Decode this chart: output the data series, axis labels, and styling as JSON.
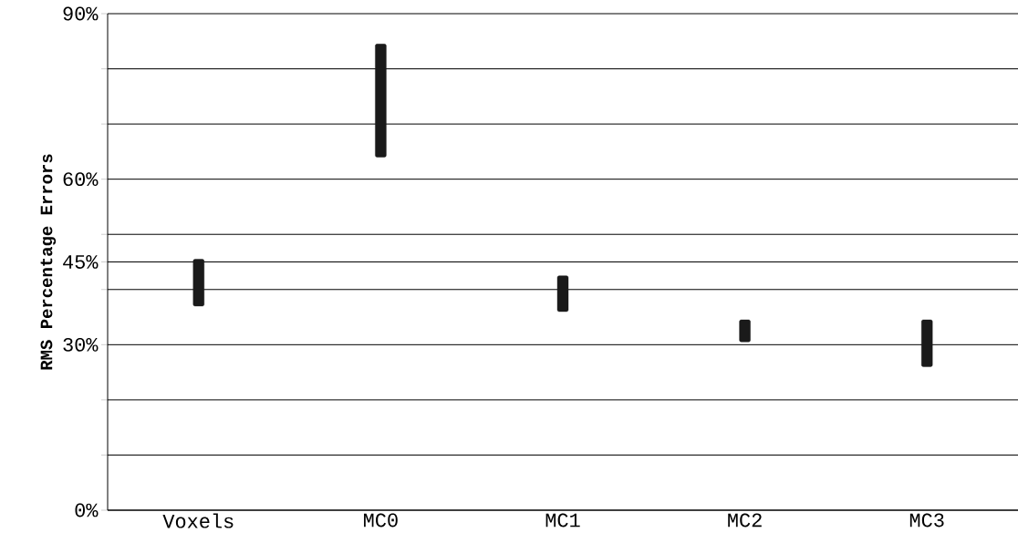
{
  "chart_data": {
    "type": "bar",
    "ylabel": "RMS Percentage Errors",
    "categories": [
      "Voxels",
      "MC0",
      "MC1",
      "MC2",
      "MC3"
    ],
    "base": [
      37,
      64,
      36,
      30.5,
      26
    ],
    "values": [
      8.5,
      20.5,
      6.5,
      4,
      8.5
    ],
    "color": "#1a1a1a",
    "ylim": [
      0,
      90
    ],
    "yticks": [
      {
        "value": 0,
        "label": "0%"
      },
      {
        "value": 10,
        "label": null
      },
      {
        "value": 20,
        "label": null
      },
      {
        "value": 30,
        "label": "30%"
      },
      {
        "value": 40,
        "label": null
      },
      {
        "value": 45,
        "label": "45%"
      },
      {
        "value": 50,
        "label": null
      },
      {
        "value": 60,
        "label": "60%"
      },
      {
        "value": 70,
        "label": null
      },
      {
        "value": 80,
        "label": null
      },
      {
        "value": 90,
        "label": "90%"
      }
    ],
    "grid": "y"
  }
}
